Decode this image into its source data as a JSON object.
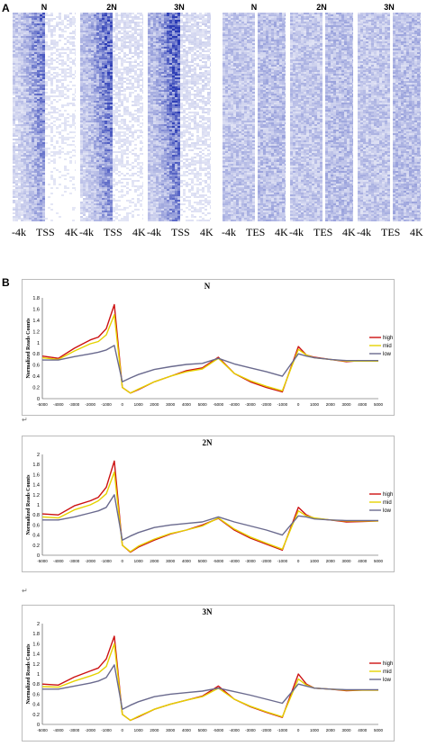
{
  "panelA": {
    "label": "A",
    "columns": [
      {
        "title": "N",
        "region": "TSS"
      },
      {
        "title": "2N",
        "region": "TSS"
      },
      {
        "title": "3N",
        "region": "TSS"
      },
      {
        "title": "N",
        "region": "TES"
      },
      {
        "title": "2N",
        "region": "TES"
      },
      {
        "title": "3N",
        "region": "TES"
      }
    ],
    "axis_tss": [
      "-4k",
      "TSS",
      "4K"
    ],
    "axis_tes": [
      "-4k",
      "TES",
      "4K"
    ],
    "heat_color": "#2a3bb5"
  },
  "panelB": {
    "label": "B",
    "return_mark": "↵"
  },
  "chart_data": [
    {
      "type": "line",
      "title": "N",
      "ylabel": "Normalized Reads Counts",
      "ylim": [
        0,
        1.8
      ],
      "yticks": [
        "0",
        "0.2",
        "0.4",
        "0.6",
        "0.8",
        "1",
        "1.2",
        "1.4",
        "1.6",
        "1.8"
      ],
      "x": [
        -5000,
        -4000,
        -3000,
        -2000,
        -1500,
        -1000,
        -500,
        0,
        500,
        1000,
        2000,
        3000,
        4000,
        5000,
        -5000,
        -4000,
        -3000,
        -2000,
        -1000,
        0,
        500,
        1000,
        2000,
        3000,
        4000,
        5000
      ],
      "xticks": [
        "-5000",
        "-4000",
        "-3000",
        "-2000",
        "-1000",
        "0",
        "1000",
        "2000",
        "3000",
        "4000",
        "5000",
        "-5000",
        "-4000",
        "-3000",
        "-2000",
        "-1000",
        "0",
        "1000",
        "2000",
        "3000",
        "4000",
        "5000"
      ],
      "series": [
        {
          "name": "high",
          "color": "#cc1111",
          "values": [
            0.76,
            0.72,
            0.9,
            1.05,
            1.1,
            1.25,
            1.68,
            0.2,
            0.1,
            0.16,
            0.3,
            0.4,
            0.5,
            0.55,
            0.74,
            0.45,
            0.3,
            0.2,
            0.12,
            0.93,
            0.78,
            0.74,
            0.7,
            0.66,
            0.68,
            0.67
          ]
        },
        {
          "name": "mid",
          "color": "#e5d200",
          "values": [
            0.73,
            0.7,
            0.85,
            0.98,
            1.02,
            1.14,
            1.5,
            0.2,
            0.1,
            0.17,
            0.3,
            0.4,
            0.48,
            0.53,
            0.72,
            0.45,
            0.32,
            0.22,
            0.14,
            0.88,
            0.78,
            0.73,
            0.7,
            0.67,
            0.67,
            0.67
          ]
        },
        {
          "name": "low",
          "color": "#6a6a8e",
          "values": [
            0.69,
            0.69,
            0.75,
            0.8,
            0.83,
            0.87,
            0.95,
            0.3,
            0.37,
            0.43,
            0.52,
            0.57,
            0.61,
            0.63,
            0.72,
            0.62,
            0.55,
            0.48,
            0.4,
            0.8,
            0.76,
            0.73,
            0.7,
            0.68,
            0.68,
            0.68
          ]
        }
      ]
    },
    {
      "type": "line",
      "title": "2N",
      "ylabel": "Normalized Reads Counts",
      "ylim": [
        0,
        2
      ],
      "yticks": [
        "0",
        "0.2",
        "0.4",
        "0.6",
        "0.8",
        "1",
        "1.2",
        "1.4",
        "1.6",
        "1.8",
        "2"
      ],
      "x": [
        -5000,
        -4000,
        -3000,
        -2000,
        -1500,
        -1000,
        -500,
        0,
        500,
        1000,
        2000,
        3000,
        4000,
        5000,
        -5000,
        -4000,
        -3000,
        -2000,
        -1000,
        0,
        500,
        1000,
        2000,
        3000,
        4000,
        5000
      ],
      "xticks": [
        "-5000",
        "-4000",
        "-3000",
        "-2000",
        "-1000",
        "0",
        "1000",
        "2000",
        "3000",
        "4000",
        "5000",
        "-5000",
        "-4000",
        "-3000",
        "-2000",
        "-1000",
        "0",
        "1000",
        "2000",
        "3000",
        "4000",
        "5000"
      ],
      "series": [
        {
          "name": "high",
          "color": "#cc1111",
          "values": [
            0.82,
            0.8,
            0.98,
            1.08,
            1.15,
            1.35,
            1.87,
            0.2,
            0.06,
            0.16,
            0.3,
            0.42,
            0.5,
            0.6,
            0.73,
            0.5,
            0.34,
            0.22,
            0.1,
            0.95,
            0.8,
            0.73,
            0.7,
            0.66,
            0.67,
            0.68
          ]
        },
        {
          "name": "mid",
          "color": "#e5d200",
          "values": [
            0.76,
            0.74,
            0.9,
            1.0,
            1.08,
            1.22,
            1.65,
            0.2,
            0.07,
            0.18,
            0.32,
            0.43,
            0.5,
            0.58,
            0.74,
            0.52,
            0.36,
            0.24,
            0.12,
            0.88,
            0.78,
            0.74,
            0.7,
            0.68,
            0.68,
            0.68
          ]
        },
        {
          "name": "low",
          "color": "#6a6a8e",
          "values": [
            0.7,
            0.7,
            0.76,
            0.84,
            0.88,
            0.95,
            1.2,
            0.3,
            0.38,
            0.45,
            0.55,
            0.6,
            0.63,
            0.66,
            0.76,
            0.66,
            0.58,
            0.5,
            0.4,
            0.78,
            0.76,
            0.72,
            0.7,
            0.69,
            0.69,
            0.69
          ]
        }
      ]
    },
    {
      "type": "line",
      "title": "3N",
      "ylabel": "Normalized Reads Counts",
      "ylim": [
        0,
        2
      ],
      "yticks": [
        "0",
        "0.2",
        "0.4",
        "0.6",
        "0.8",
        "1",
        "1.2",
        "1.4",
        "1.6",
        "1.8",
        "2"
      ],
      "x": [
        -5000,
        -4000,
        -3000,
        -2000,
        -1500,
        -1000,
        -500,
        0,
        500,
        1000,
        2000,
        3000,
        4000,
        5000,
        -5000,
        -4000,
        -3000,
        -2000,
        -1000,
        0,
        500,
        1000,
        2000,
        3000,
        4000,
        5000
      ],
      "xticks": [
        "-5000",
        "-4000",
        "-3000",
        "-2000",
        "-1000",
        "0",
        "1000",
        "2000",
        "3000",
        "4000",
        "5000",
        "-5000",
        "-4000",
        "-3000",
        "-2000",
        "-1000",
        "0",
        "1000",
        "2000",
        "3000",
        "4000",
        "5000"
      ],
      "series": [
        {
          "name": "high",
          "color": "#cc1111",
          "values": [
            0.8,
            0.78,
            0.94,
            1.06,
            1.12,
            1.3,
            1.75,
            0.2,
            0.08,
            0.15,
            0.3,
            0.4,
            0.48,
            0.56,
            0.76,
            0.5,
            0.35,
            0.24,
            0.14,
            1.0,
            0.8,
            0.72,
            0.7,
            0.67,
            0.68,
            0.68
          ]
        },
        {
          "name": "mid",
          "color": "#e5d200",
          "values": [
            0.75,
            0.74,
            0.86,
            0.96,
            1.02,
            1.15,
            1.6,
            0.2,
            0.08,
            0.16,
            0.3,
            0.4,
            0.48,
            0.55,
            0.72,
            0.5,
            0.36,
            0.25,
            0.15,
            0.9,
            0.78,
            0.72,
            0.7,
            0.68,
            0.68,
            0.68
          ]
        },
        {
          "name": "low",
          "color": "#6a6a8e",
          "values": [
            0.7,
            0.7,
            0.76,
            0.82,
            0.86,
            0.93,
            1.18,
            0.3,
            0.38,
            0.45,
            0.55,
            0.6,
            0.63,
            0.66,
            0.72,
            0.65,
            0.58,
            0.5,
            0.42,
            0.8,
            0.76,
            0.72,
            0.7,
            0.69,
            0.69,
            0.69
          ]
        }
      ]
    }
  ]
}
